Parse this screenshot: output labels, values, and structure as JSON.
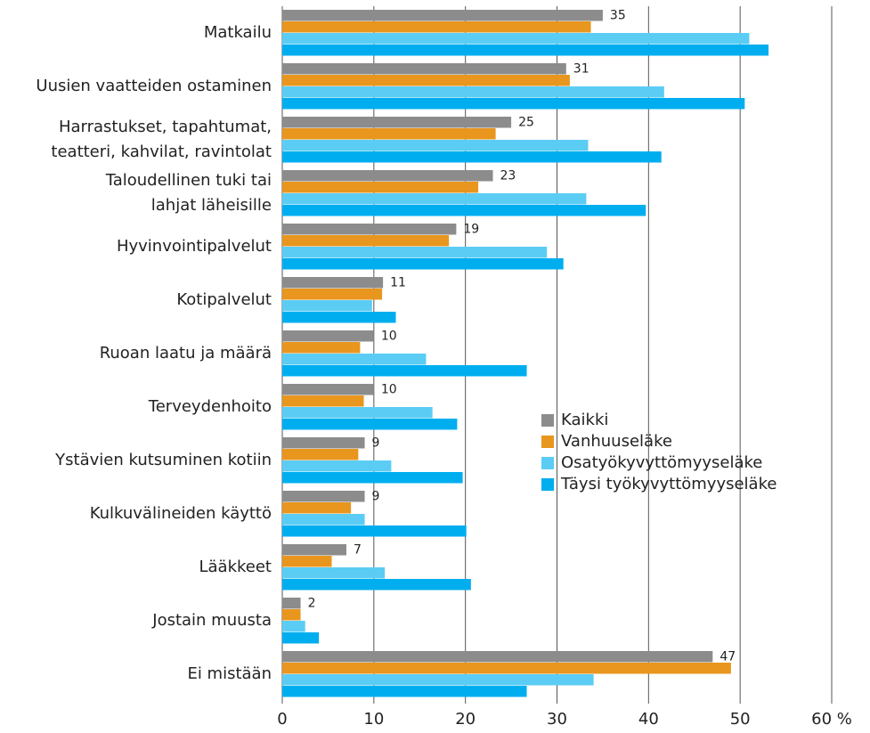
{
  "chart_data": {
    "type": "bar",
    "orientation": "horizontal",
    "categories": [
      "Matkailu",
      "Uusien vaatteiden ostaminen",
      "Harrastukset, tapahtumat,\nteatteri, kahvilat, ravintolat",
      "Taloudellinen tuki tai\nlahjat läheisille",
      "Hyvinvointipalvelut",
      "Kotipalvelut",
      "Ruoan laatu ja määrä",
      "Terveydenhoito",
      "Ystävien kutsuminen kotiin",
      "Kulkuvälineiden käyttö",
      "Lääkkeet",
      "Jostain muusta",
      "Ei mistään"
    ],
    "series": [
      {
        "name": "Kaikki",
        "color": "#8c8c8c",
        "values": [
          35,
          31,
          25,
          23,
          19,
          11,
          10,
          10,
          9,
          9,
          7,
          2,
          47
        ]
      },
      {
        "name": "Vanhuuseläke",
        "color": "#e8961e",
        "values": [
          33.7,
          31.4,
          23.3,
          21.4,
          18.2,
          10.9,
          8.5,
          8.9,
          8.3,
          7.5,
          5.4,
          2.0,
          49
        ]
      },
      {
        "name": "Osatyökyvyttömyyseläke",
        "color": "#5bcdf5",
        "values": [
          51,
          41.7,
          33.4,
          33.2,
          28.9,
          9.8,
          15.7,
          16.4,
          11.9,
          9.0,
          11.2,
          2.5,
          34
        ]
      },
      {
        "name": "Täysi työkyvyttömyyseläke",
        "color": "#00aeef",
        "values": [
          53.1,
          50.5,
          41.4,
          39.7,
          30.7,
          12.4,
          26.7,
          19.1,
          19.7,
          20.1,
          20.6,
          4.0,
          26.7
        ]
      }
    ],
    "xlim": [
      0,
      60
    ],
    "xticks": [
      0,
      10,
      20,
      30,
      40,
      50,
      {
        "value": 60,
        "label": "60 %"
      }
    ],
    "grid": true,
    "legend": "center-right",
    "data_labels_series": 0
  }
}
